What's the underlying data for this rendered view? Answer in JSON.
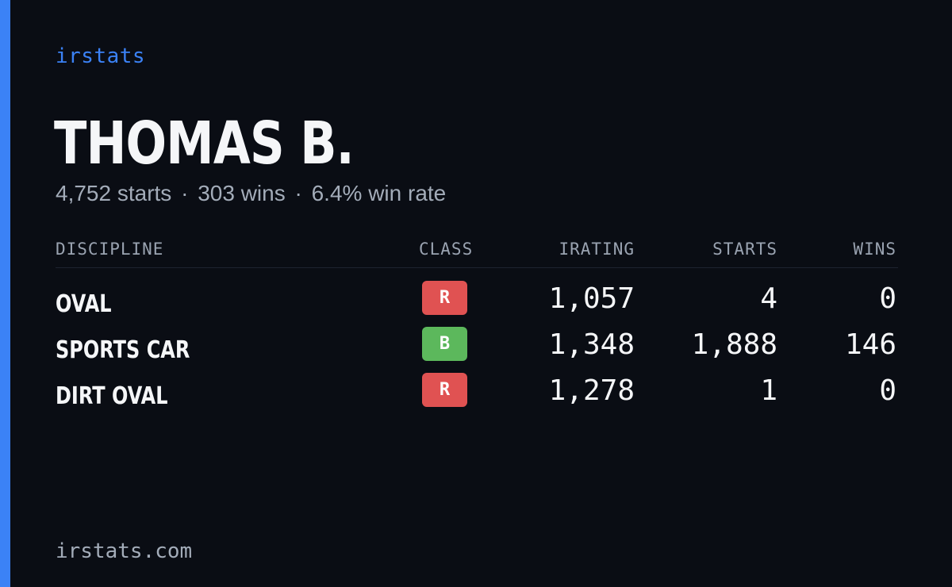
{
  "brand": "irstats",
  "driver": {
    "name": "THOMAS B.",
    "summary": {
      "starts": "4,752 starts",
      "wins": "303 wins",
      "win_rate": "6.4% win rate",
      "separator": "·"
    }
  },
  "table": {
    "headers": {
      "discipline": "DISCIPLINE",
      "class": "CLASS",
      "irating": "IRATING",
      "starts": "STARTS",
      "wins": "WINS"
    },
    "rows": [
      {
        "discipline": "OVAL",
        "class": "R",
        "class_color": "#e05252",
        "irating": "1,057",
        "starts": "4",
        "wins": "0"
      },
      {
        "discipline": "SPORTS CAR",
        "class": "B",
        "class_color": "#5cb85c",
        "irating": "1,348",
        "starts": "1,888",
        "wins": "146"
      },
      {
        "discipline": "DIRT OVAL",
        "class": "R",
        "class_color": "#e05252",
        "irating": "1,278",
        "starts": "1",
        "wins": "0"
      }
    ]
  },
  "footer": {
    "url": "irstats.com"
  },
  "colors": {
    "background": "#0a0d14",
    "accent": "#3b82f6",
    "muted_text": "#a3acb9",
    "class_r": "#e05252",
    "class_b": "#5cb85c"
  }
}
